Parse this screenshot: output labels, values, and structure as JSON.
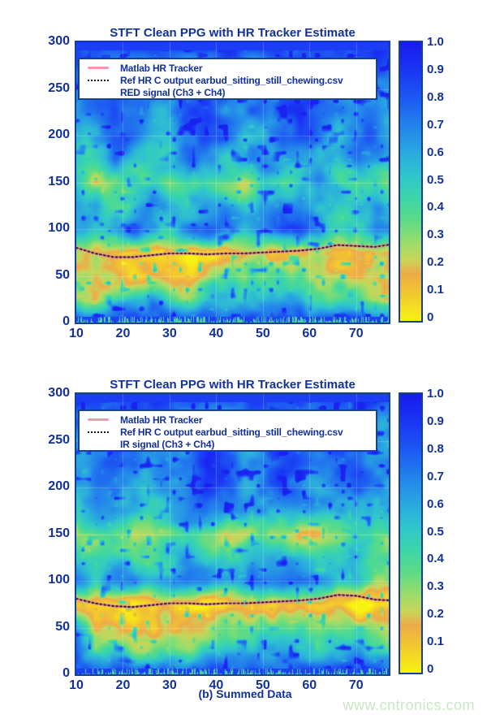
{
  "figure": {
    "caption": "(b) Summed Data",
    "watermark": "www.cntronics.com",
    "text_color": "#13319b",
    "watermark_color": "#c9e7c5",
    "accent_pink": "#f795ae",
    "frame_color": "#16418f"
  },
  "colormap": [
    [
      0.0,
      "#1a1aee"
    ],
    [
      0.1,
      "#1a35f4"
    ],
    [
      0.2,
      "#1d58f2"
    ],
    [
      0.3,
      "#2383ec"
    ],
    [
      0.4,
      "#2aaade"
    ],
    [
      0.48,
      "#30c6cc"
    ],
    [
      0.56,
      "#3cd6a8"
    ],
    [
      0.64,
      "#5ddb86"
    ],
    [
      0.72,
      "#9cdc6a"
    ],
    [
      0.78,
      "#c9d55a"
    ],
    [
      0.83,
      "#eeaa48"
    ],
    [
      0.9,
      "#f2c630"
    ],
    [
      1.0,
      "#f8f212"
    ]
  ],
  "chart_data": [
    {
      "type": "heatmap",
      "title": "STFT Clean PPG with HR Tracker Estimate",
      "xlim": [
        10,
        77
      ],
      "ylim": [
        0,
        300
      ],
      "x_ticks": [
        10,
        20,
        30,
        40,
        50,
        60,
        70
      ],
      "y_ticks": [
        0,
        50,
        100,
        150,
        200,
        250,
        300
      ],
      "colorbar_ticks": [
        {
          "label": "1.0",
          "value": 1.0
        },
        {
          "label": "0.9",
          "value": 0.9
        },
        {
          "label": "0.8",
          "value": 0.8
        },
        {
          "label": "0.7",
          "value": 0.7
        },
        {
          "label": "0.6",
          "value": 0.6
        },
        {
          "label": "0.5",
          "value": 0.5
        },
        {
          "label": "0.4",
          "value": 0.4
        },
        {
          "label": "0.3",
          "value": 0.3
        },
        {
          "label": "0.2",
          "value": 0.2
        },
        {
          "label": "0.1",
          "value": 0.1
        },
        {
          "label": "0",
          "value": 0.0
        }
      ],
      "legend": [
        {
          "marker": "pink-line",
          "label": "Matlab HR Tracker"
        },
        {
          "marker": "black-dotted",
          "label": "Ref HR C output earbud_sitting_still_chewing.csv"
        },
        {
          "marker": "none",
          "label": "RED signal (Ch3 + Ch4)"
        }
      ],
      "grid_x": [
        10,
        14,
        18,
        22,
        26,
        30,
        34,
        38,
        42,
        46,
        50,
        54,
        58,
        62,
        66,
        70,
        74,
        78
      ],
      "grid_y": [
        300,
        275,
        250,
        225,
        200,
        175,
        150,
        125,
        100,
        75,
        50,
        25,
        0
      ],
      "values": [
        [
          0.12,
          0.12,
          0.12,
          0.12,
          0.12,
          0.12,
          0.12,
          0.12,
          0.12,
          0.12,
          0.12,
          0.12,
          0.12,
          0.12,
          0.12,
          0.12,
          0.12,
          0.12
        ],
        [
          0.25,
          0.2,
          0.3,
          0.35,
          0.25,
          0.3,
          0.35,
          0.3,
          0.25,
          0.3,
          0.35,
          0.25,
          0.15,
          0.2,
          0.35,
          0.3,
          0.2,
          0.3
        ],
        [
          0.3,
          0.25,
          0.15,
          0.3,
          0.35,
          0.3,
          0.25,
          0.2,
          0.3,
          0.35,
          0.3,
          0.2,
          0.15,
          0.25,
          0.35,
          0.3,
          0.25,
          0.35
        ],
        [
          0.35,
          0.3,
          0.15,
          0.25,
          0.35,
          0.3,
          0.2,
          0.15,
          0.3,
          0.35,
          0.3,
          0.2,
          0.15,
          0.25,
          0.35,
          0.3,
          0.25,
          0.35
        ],
        [
          0.45,
          0.35,
          0.15,
          0.2,
          0.4,
          0.45,
          0.3,
          0.15,
          0.2,
          0.4,
          0.35,
          0.15,
          0.1,
          0.3,
          0.45,
          0.35,
          0.2,
          0.45
        ],
        [
          0.5,
          0.45,
          0.3,
          0.45,
          0.5,
          0.4,
          0.25,
          0.35,
          0.45,
          0.35,
          0.25,
          0.35,
          0.45,
          0.5,
          0.45,
          0.3,
          0.45,
          0.5
        ],
        [
          0.62,
          0.78,
          0.6,
          0.5,
          0.55,
          0.75,
          0.6,
          0.72,
          0.68,
          0.75,
          0.5,
          0.68,
          0.45,
          0.4,
          0.5,
          0.72,
          0.6,
          0.75
        ],
        [
          0.45,
          0.4,
          0.55,
          0.5,
          0.3,
          0.45,
          0.5,
          0.4,
          0.35,
          0.45,
          0.4,
          0.3,
          0.25,
          0.4,
          0.5,
          0.45,
          0.4,
          0.5
        ],
        [
          0.4,
          0.45,
          0.3,
          0.2,
          0.4,
          0.45,
          0.3,
          0.2,
          0.3,
          0.45,
          0.35,
          0.2,
          0.15,
          0.35,
          0.5,
          0.55,
          0.4,
          0.45
        ],
        [
          0.8,
          0.75,
          0.85,
          0.95,
          0.9,
          0.85,
          0.9,
          0.95,
          0.9,
          0.85,
          0.8,
          0.85,
          0.9,
          0.8,
          0.9,
          0.95,
          0.9,
          0.95
        ],
        [
          0.85,
          0.7,
          0.75,
          0.9,
          0.8,
          0.85,
          0.9,
          0.8,
          0.6,
          0.65,
          0.6,
          0.55,
          0.6,
          0.75,
          0.85,
          0.8,
          0.75,
          0.8
        ],
        [
          0.7,
          0.8,
          0.6,
          0.45,
          0.35,
          0.65,
          0.75,
          0.55,
          0.4,
          0.5,
          0.45,
          0.4,
          0.5,
          0.6,
          0.55,
          0.45,
          0.7,
          0.8
        ],
        [
          0.15,
          0.15,
          0.15,
          0.15,
          0.15,
          0.15,
          0.15,
          0.15,
          0.15,
          0.15,
          0.15,
          0.15,
          0.15,
          0.15,
          0.15,
          0.15,
          0.15,
          0.15
        ]
      ],
      "tracker": {
        "x": [
          10,
          14,
          18,
          22,
          26,
          30,
          34,
          38,
          42,
          46,
          50,
          54,
          58,
          62,
          66,
          70,
          74,
          78
        ],
        "hr": [
          80,
          74,
          70,
          70,
          72,
          74,
          74,
          73,
          74,
          74,
          75,
          76,
          77,
          79,
          83,
          82,
          81,
          84
        ]
      }
    },
    {
      "type": "heatmap",
      "title": "STFT Clean PPG with HR Tracker Estimate",
      "xlim": [
        10,
        77
      ],
      "ylim": [
        0,
        300
      ],
      "x_ticks": [
        10,
        20,
        30,
        40,
        50,
        60,
        70
      ],
      "y_ticks": [
        0,
        50,
        100,
        150,
        200,
        250,
        300
      ],
      "colorbar_ticks": [
        {
          "label": "1.0",
          "value": 1.0
        },
        {
          "label": "0.9",
          "value": 0.9
        },
        {
          "label": "0.8",
          "value": 0.8
        },
        {
          "label": "0.7",
          "value": 0.7
        },
        {
          "label": "0.6",
          "value": 0.6
        },
        {
          "label": "0.5",
          "value": 0.5
        },
        {
          "label": "0.4",
          "value": 0.4
        },
        {
          "label": "0.3",
          "value": 0.3
        },
        {
          "label": "0.2",
          "value": 0.2
        },
        {
          "label": "0.1",
          "value": 0.1
        },
        {
          "label": "0",
          "value": 0.0
        }
      ],
      "legend": [
        {
          "marker": "pink-line",
          "label": "Matlab HR Tracker"
        },
        {
          "marker": "black-dotted",
          "label": "Ref HR C output earbud_sitting_still_chewing.csv"
        },
        {
          "marker": "none",
          "label": "IR signal (Ch3 + Ch4)"
        }
      ],
      "grid_x": [
        10,
        14,
        18,
        22,
        26,
        30,
        34,
        38,
        42,
        46,
        50,
        54,
        58,
        62,
        66,
        70,
        74,
        78
      ],
      "grid_y": [
        300,
        275,
        250,
        225,
        200,
        175,
        150,
        125,
        100,
        75,
        50,
        25,
        0
      ],
      "values": [
        [
          0.12,
          0.12,
          0.12,
          0.12,
          0.12,
          0.12,
          0.12,
          0.12,
          0.12,
          0.12,
          0.12,
          0.12,
          0.12,
          0.12,
          0.12,
          0.12,
          0.12,
          0.12
        ],
        [
          0.25,
          0.3,
          0.2,
          0.3,
          0.35,
          0.3,
          0.25,
          0.3,
          0.35,
          0.3,
          0.25,
          0.2,
          0.3,
          0.35,
          0.25,
          0.2,
          0.3,
          0.35
        ],
        [
          0.3,
          0.25,
          0.15,
          0.25,
          0.3,
          0.35,
          0.25,
          0.2,
          0.3,
          0.35,
          0.25,
          0.15,
          0.25,
          0.3,
          0.25,
          0.2,
          0.3,
          0.3
        ],
        [
          0.3,
          0.25,
          0.15,
          0.2,
          0.3,
          0.35,
          0.25,
          0.15,
          0.2,
          0.3,
          0.25,
          0.15,
          0.2,
          0.3,
          0.25,
          0.2,
          0.3,
          0.35
        ],
        [
          0.4,
          0.3,
          0.2,
          0.3,
          0.4,
          0.35,
          0.2,
          0.15,
          0.25,
          0.35,
          0.3,
          0.2,
          0.25,
          0.35,
          0.3,
          0.25,
          0.4,
          0.45
        ],
        [
          0.5,
          0.4,
          0.3,
          0.4,
          0.45,
          0.4,
          0.3,
          0.35,
          0.4,
          0.35,
          0.3,
          0.35,
          0.4,
          0.45,
          0.4,
          0.3,
          0.45,
          0.5
        ],
        [
          0.75,
          0.7,
          0.55,
          0.7,
          0.75,
          0.7,
          0.6,
          0.65,
          0.75,
          0.7,
          0.6,
          0.65,
          0.75,
          0.7,
          0.6,
          0.55,
          0.7,
          0.75
        ],
        [
          0.5,
          0.55,
          0.45,
          0.55,
          0.6,
          0.5,
          0.4,
          0.45,
          0.55,
          0.5,
          0.4,
          0.35,
          0.45,
          0.5,
          0.45,
          0.4,
          0.6,
          0.65
        ],
        [
          0.35,
          0.4,
          0.3,
          0.25,
          0.4,
          0.35,
          0.25,
          0.2,
          0.35,
          0.4,
          0.3,
          0.2,
          0.25,
          0.35,
          0.4,
          0.35,
          0.65,
          0.75
        ],
        [
          0.9,
          0.85,
          0.9,
          1.0,
          0.95,
          0.9,
          0.95,
          1.0,
          0.95,
          0.9,
          0.85,
          0.9,
          0.95,
          0.9,
          0.95,
          1.0,
          0.95,
          1.0
        ],
        [
          0.35,
          0.8,
          0.7,
          0.85,
          0.9,
          0.8,
          0.75,
          0.7,
          0.6,
          0.65,
          0.55,
          0.6,
          0.65,
          0.7,
          0.75,
          0.65,
          0.7,
          0.75
        ],
        [
          0.25,
          0.6,
          0.55,
          0.65,
          0.6,
          0.55,
          0.6,
          0.5,
          0.4,
          0.45,
          0.4,
          0.35,
          0.45,
          0.5,
          0.45,
          0.4,
          0.55,
          0.6
        ],
        [
          0.15,
          0.15,
          0.15,
          0.15,
          0.15,
          0.15,
          0.15,
          0.15,
          0.15,
          0.15,
          0.15,
          0.15,
          0.15,
          0.15,
          0.15,
          0.15,
          0.15,
          0.15
        ]
      ],
      "tracker": {
        "x": [
          10,
          14,
          18,
          22,
          26,
          30,
          34,
          38,
          42,
          46,
          50,
          54,
          58,
          62,
          66,
          70,
          74,
          78
        ],
        "hr": [
          81,
          76,
          73,
          72,
          74,
          76,
          76,
          75,
          76,
          76,
          77,
          78,
          79,
          81,
          85,
          84,
          80,
          79
        ]
      }
    }
  ]
}
